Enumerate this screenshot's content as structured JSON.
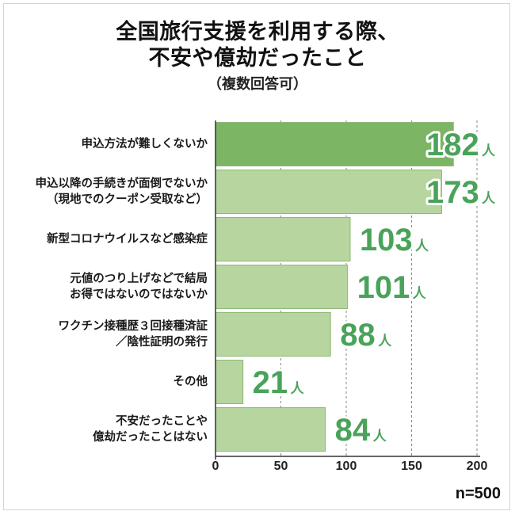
{
  "chart_data": {
    "type": "bar",
    "orientation": "horizontal",
    "title_lines": [
      "全国旅行支援を利用する際、",
      "不安や億劫だったこと"
    ],
    "subtitle": "（複数回答可）",
    "categories": [
      [
        "申込方法が難しくないか"
      ],
      [
        "申込以降の手続きが面倒でないか",
        "（現地でのクーポン受取など）"
      ],
      [
        "新型コロナウイルスなど感染症"
      ],
      [
        "元値のつり上げなどで結局",
        "お得ではないのではないか"
      ],
      [
        "ワクチン接種歴３回接種済証",
        "／陰性証明の発行"
      ],
      [
        "その他"
      ],
      [
        "不安だったことや",
        "億劫だったことはない"
      ]
    ],
    "values": [
      182,
      173,
      103,
      101,
      88,
      21,
      84
    ],
    "unit": "人",
    "xlim": [
      0,
      200
    ],
    "xticks": [
      "0",
      "50",
      "100",
      "150",
      "200"
    ],
    "grid": true,
    "sample_note": "n=500",
    "colors": {
      "highlight_bar": "#7cb564",
      "bar": "#b6d59f",
      "bar_border": "#8fb877",
      "value_text": "#4aa35a",
      "grid": "#888888",
      "axis": "#333333"
    }
  }
}
